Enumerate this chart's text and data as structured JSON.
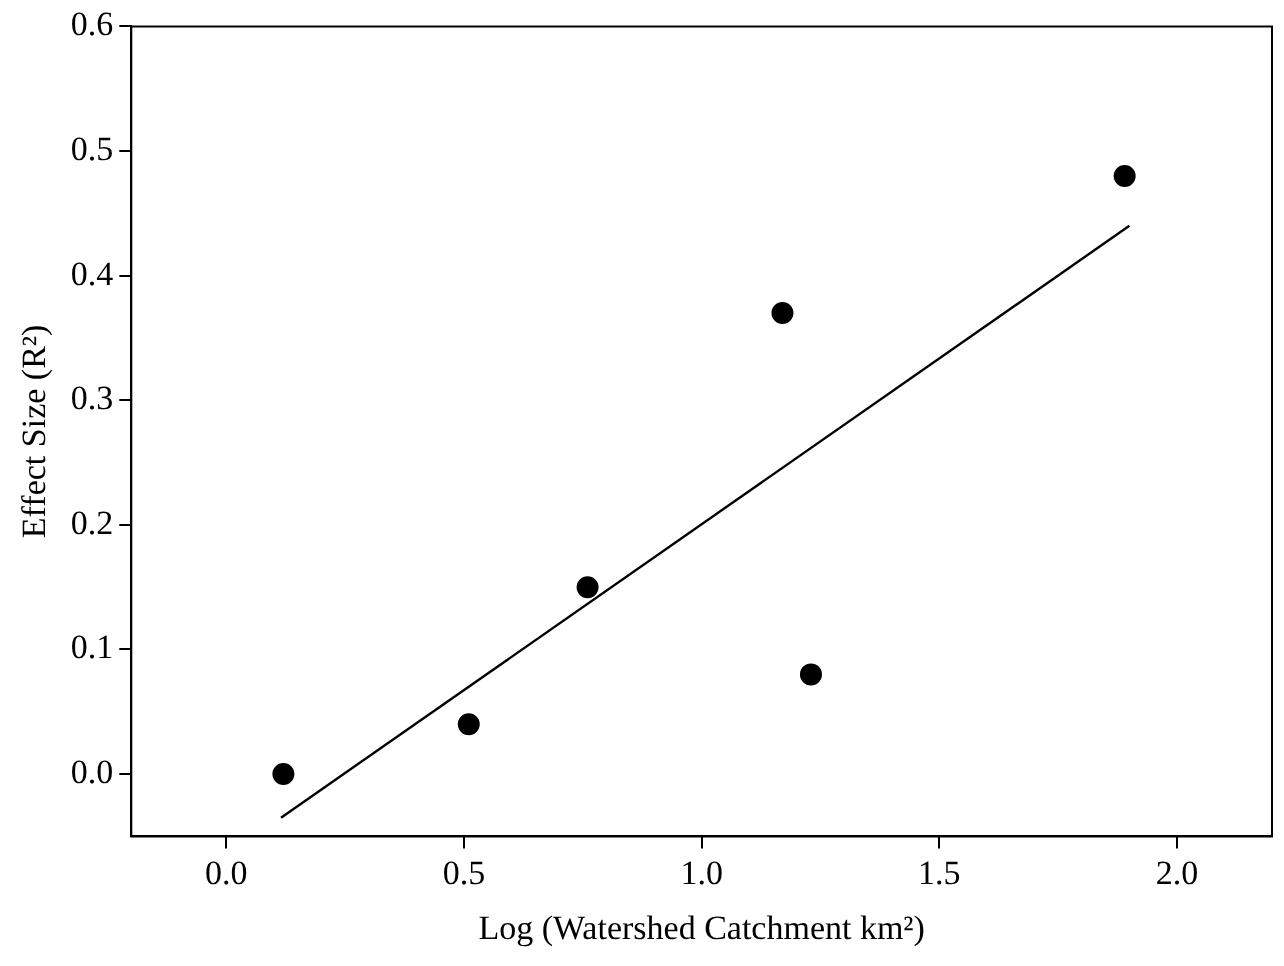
{
  "chart_data": {
    "type": "scatter",
    "xlabel": "Log (Watershed Catchment km²)",
    "ylabel": "Effect Size (R²)",
    "xlim": [
      -0.2,
      2.2
    ],
    "xticks": [
      {
        "value": 0,
        "label": "0.0"
      },
      0.5,
      {
        "value": 1,
        "label": "1.0"
      },
      1.5,
      {
        "value": 2,
        "label": "2.0"
      }
    ],
    "ylim": [
      -0.05,
      0.6
    ],
    "yticks": [
      {
        "value": 0,
        "label": "0.0"
      },
      0.1,
      0.2,
      0.3,
      0.4,
      0.5,
      0.6
    ],
    "grid": false,
    "legend": false,
    "marker": "circle",
    "series": [
      {
        "color": "#000000",
        "x": [
          0.12,
          0.51,
          0.76,
          1.17,
          1.23,
          1.89
        ],
        "values": [
          0,
          0.04,
          0.15,
          0.37,
          0.08,
          0.48
        ]
      },
      {
        "type": "line",
        "color": "#000000",
        "line_style": "solid",
        "marker": "none",
        "x": [
          0.115,
          1.9
        ],
        "values": [
          -0.035,
          0.44
        ]
      }
    ]
  }
}
